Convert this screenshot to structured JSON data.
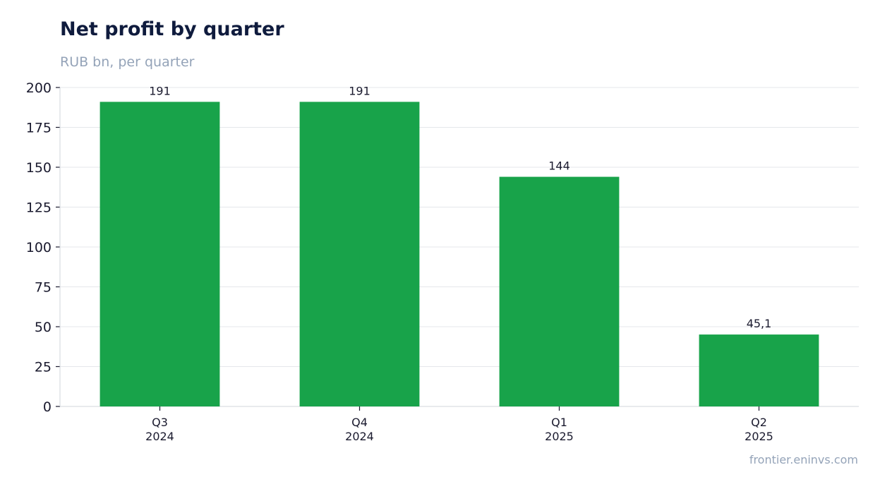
{
  "header": {
    "title": "Net profit by quarter",
    "subtitle": "RUB bn, per quarter"
  },
  "footer": {
    "source": "frontier.eninvs.com"
  },
  "colors": {
    "bar": "#18a34a",
    "grid": "#e5e7eb",
    "axis": "#d1d5db",
    "text": "#1a1a2e"
  },
  "chart_data": {
    "type": "bar",
    "categories": [
      [
        "Q3",
        "2024"
      ],
      [
        "Q4",
        "2024"
      ],
      [
        "Q1",
        "2025"
      ],
      [
        "Q2",
        "2025"
      ]
    ],
    "values": [
      191,
      191,
      144,
      45.1
    ],
    "value_labels": [
      "191",
      "191",
      "144",
      "45,1"
    ],
    "title": "Net profit by quarter",
    "subtitle": "RUB bn, per quarter",
    "xlabel": "",
    "ylabel": "",
    "ylim": [
      0,
      200
    ],
    "yticks": [
      0,
      25,
      50,
      75,
      100,
      125,
      150,
      175,
      200
    ],
    "grid": true,
    "legend": "none"
  }
}
